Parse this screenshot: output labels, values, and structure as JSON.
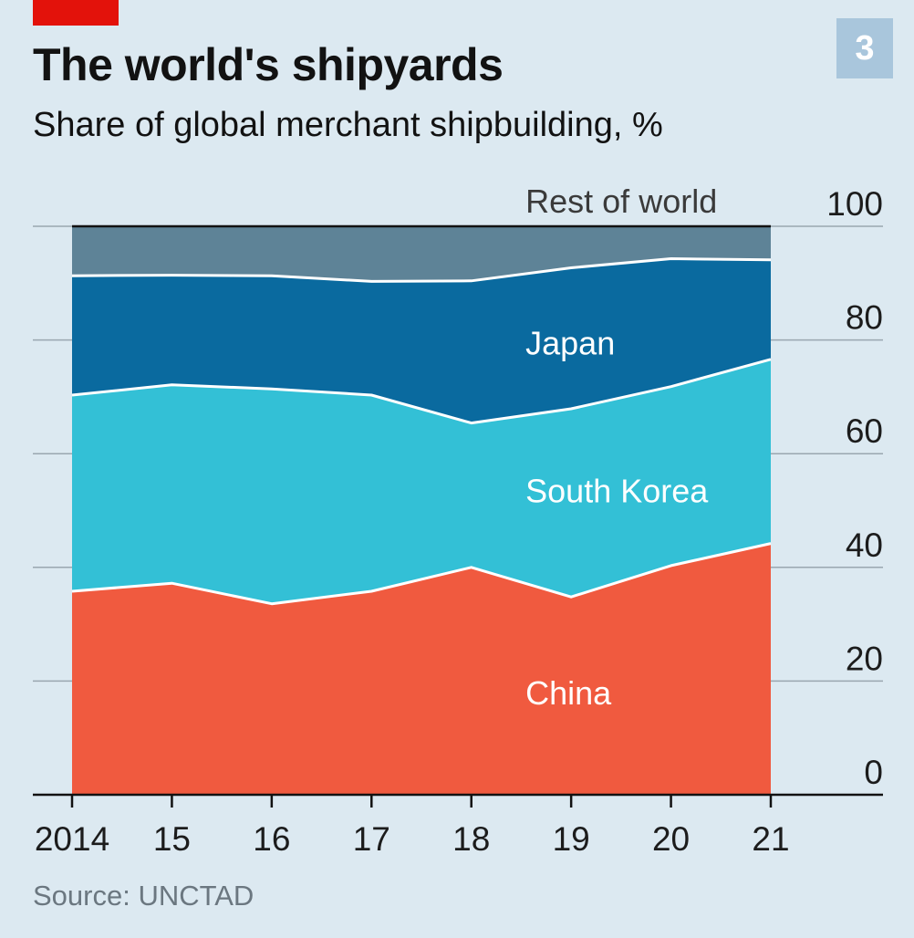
{
  "header": {
    "title": "The world's shipyards",
    "subtitle": "Share of global merchant shipbuilding, %",
    "badge": "3",
    "accent_color": "#e3120b",
    "badge_color": "#a9c6dc"
  },
  "footer": {
    "source": "Source: UNCTAD"
  },
  "chart_data": {
    "type": "area",
    "stacked": true,
    "x": [
      2014,
      2015,
      2016,
      2017,
      2018,
      2019,
      2020,
      2021
    ],
    "x_tick_labels": [
      "2014",
      "15",
      "16",
      "17",
      "18",
      "19",
      "20",
      "21"
    ],
    "y_tick_labels": [
      "0",
      "20",
      "40",
      "60",
      "80",
      "100"
    ],
    "ylim": [
      0,
      100
    ],
    "y_axis_position": "right",
    "grid": true,
    "series": [
      {
        "name": "China",
        "color": "#f05a3f",
        "label_color": "#ffffff",
        "values": [
          35.8,
          37.2,
          33.6,
          35.8,
          40.0,
          34.8,
          40.3,
          44.2
        ]
      },
      {
        "name": "South Korea",
        "color": "#33c0d6",
        "label_color": "#ffffff",
        "values": [
          34.5,
          34.9,
          37.8,
          34.5,
          25.4,
          33.1,
          31.5,
          32.4
        ]
      },
      {
        "name": "Japan",
        "color": "#0a6a9f",
        "label_color": "#ffffff",
        "values": [
          21.0,
          19.3,
          19.9,
          20.0,
          25.0,
          24.8,
          22.5,
          17.5
        ]
      },
      {
        "name": "Rest of world",
        "color": "#5e8397",
        "label_color": "#3a3a3a",
        "values": [
          8.7,
          8.6,
          8.7,
          9.7,
          9.6,
          7.3,
          5.7,
          5.9
        ]
      }
    ],
    "series_label_positions": [
      {
        "series": "China",
        "x": 2019,
        "y": 18
      },
      {
        "series": "South Korea",
        "x": 2019,
        "y": 53.5
      },
      {
        "series": "Japan",
        "x": 2019,
        "y": 79.5
      },
      {
        "series": "Rest of world",
        "x": 2019,
        "y": 104.5
      }
    ]
  }
}
